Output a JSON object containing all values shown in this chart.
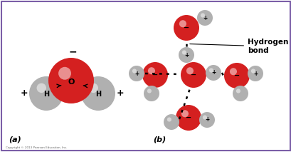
{
  "border_color": "#7b5ea7",
  "background_color": "#ffffff",
  "label_a": "(a)",
  "label_b": "(b)",
  "copyright": "Copyright © 2013 Pearson Education, Inc.",
  "hydrogen_bond_label": "Hydrogen\nbond",
  "red_color": "#d42020",
  "gray_color": "#b0b0b0",
  "minus_sign": "−",
  "plus_sign": "+"
}
